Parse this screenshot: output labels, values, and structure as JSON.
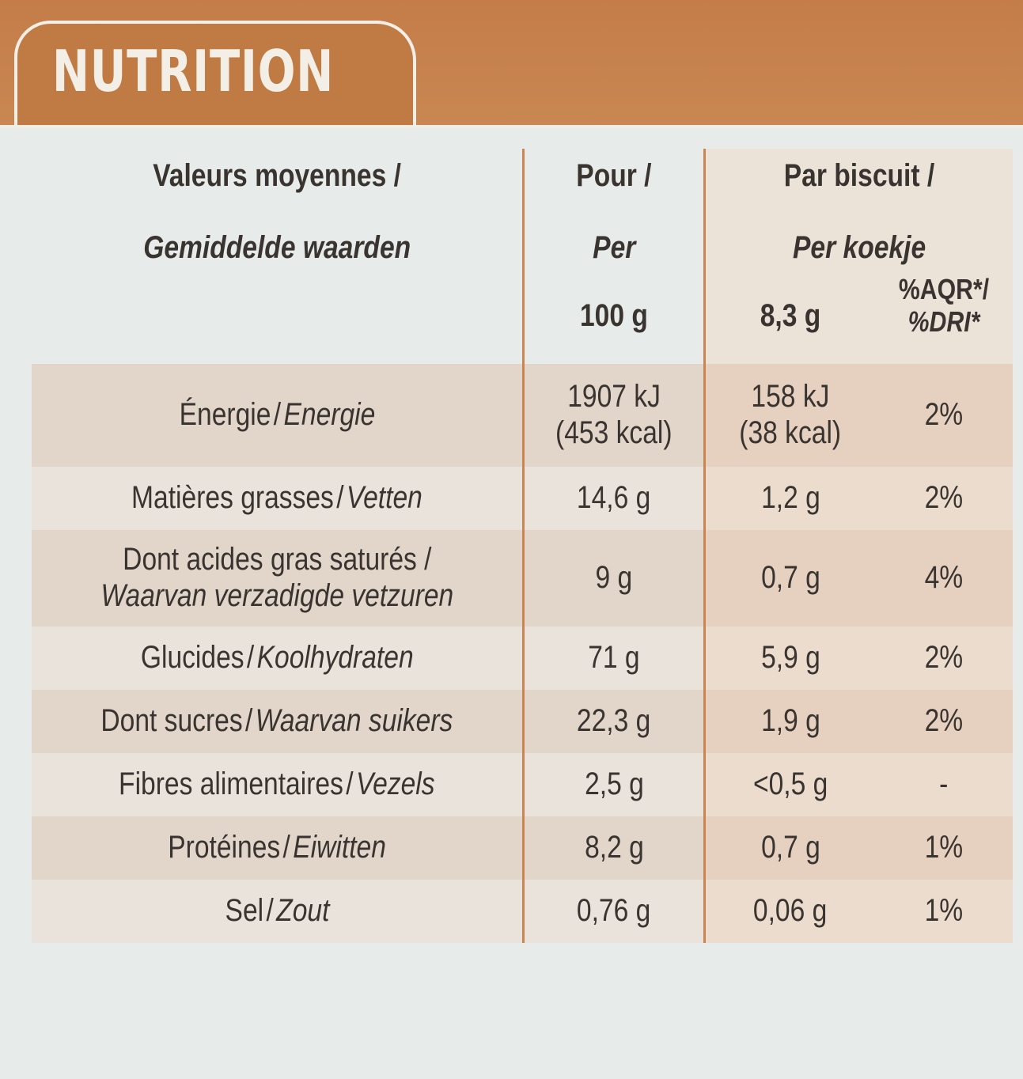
{
  "title": "NUTRITION",
  "header": {
    "col1_fr": "Valeurs moyennes /",
    "col1_nl": "Gemiddelde waarden",
    "col2_fr": "Pour /",
    "col2_nl": "Per",
    "col2_unit": "100 g",
    "col3_fr": "Par biscuit /",
    "col3_nl": "Per koekje",
    "col3_unit": "8,3 g",
    "col4_fr": "%AQR*/",
    "col4_nl": "%DRI*"
  },
  "rows": [
    {
      "label_fr": "Énergie",
      "label_nl": "Energie",
      "per100_line1": "1907 kJ",
      "per100_line2": "(453 kcal)",
      "perbiscuit_line1": "158 kJ",
      "perbiscuit_line2": "(38 kcal)",
      "dri": "2%"
    },
    {
      "label_fr": "Matières grasses",
      "label_nl": "Vetten",
      "per100": "14,6 g",
      "perbiscuit": "1,2 g",
      "dri": "2%"
    },
    {
      "label_fr": "Dont acides gras saturés /",
      "label_nl": "Waarvan verzadigde vetzuren",
      "per100": "9 g",
      "perbiscuit": "0,7 g",
      "dri": "4%"
    },
    {
      "label_fr": "Glucides",
      "label_nl": "Koolhydraten",
      "per100": "71 g",
      "perbiscuit": "5,9 g",
      "dri": "2%"
    },
    {
      "label_fr": "Dont sucres",
      "label_nl": "Waarvan suikers",
      "per100": "22,3 g",
      "perbiscuit": "1,9 g",
      "dri": "2%"
    },
    {
      "label_fr": "Fibres alimentaires",
      "label_nl": "Vezels",
      "per100": "2,5 g",
      "perbiscuit": "<0,5 g",
      "dri": "-"
    },
    {
      "label_fr": "Protéines",
      "label_nl": "Eiwitten",
      "per100": "8,2 g",
      "perbiscuit": "0,7 g",
      "dri": "1%"
    },
    {
      "label_fr": "Sel",
      "label_nl": "Zout",
      "per100": "0,76 g",
      "perbiscuit": "0,06 g",
      "dri": "1%"
    }
  ]
}
